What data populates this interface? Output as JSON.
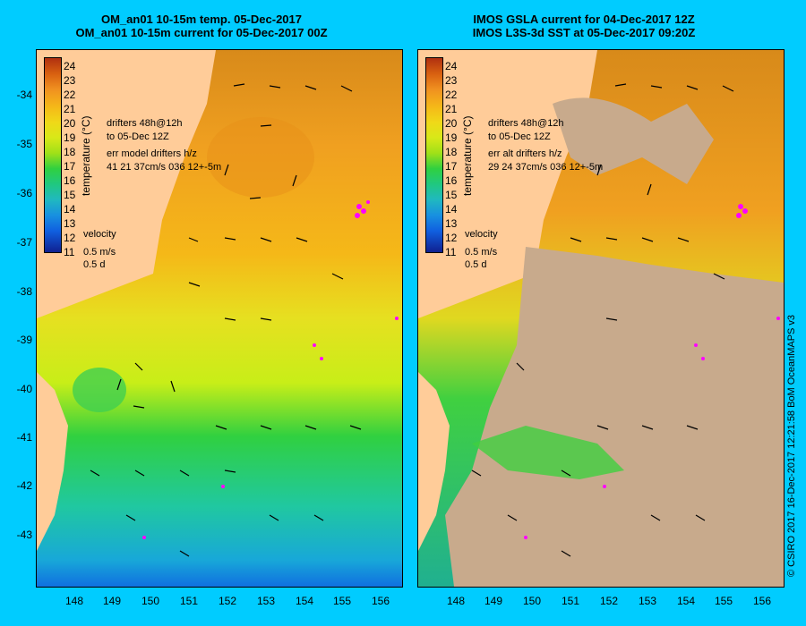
{
  "left_panel": {
    "title_line1": "OM_an01 10-15m temp. 05-Dec-2017",
    "title_line2": "OM_an01 10-15m current for 05-Dec-2017 00Z",
    "note_line1": "drifters 48h@12h",
    "note_line2": "to 05-Dec 12Z",
    "note_line3": "err model drifters h/z",
    "note_line4": "41 21 37cm/s 036 12+-5m"
  },
  "right_panel": {
    "title_line1": "IMOS GSLA current for 04-Dec-2017 12Z",
    "title_line2": "IMOS L3S-3d SST at 05-Dec-2017 09:20Z",
    "note_line1": "drifters 48h@12h",
    "note_line2": "to 05-Dec 12Z",
    "note_line3": "err alt drifters h/z",
    "note_line4": "29 24 37cm/s 036 12+-5m"
  },
  "velocity_legend": {
    "label": "velocity",
    "speed": "0.5 m/s",
    "time": "0.5 d"
  },
  "colorbar": {
    "label": "temperature (°C)",
    "ticks": [
      "24",
      "23",
      "22",
      "21",
      "20",
      "19",
      "18",
      "17",
      "16",
      "15",
      "14",
      "13",
      "12",
      "11"
    ]
  },
  "y_ticks": [
    "-34",
    "-35",
    "-36",
    "-37",
    "-38",
    "-39",
    "-40",
    "-41",
    "-42",
    "-43"
  ],
  "x_ticks": [
    "148",
    "149",
    "150",
    "151",
    "152",
    "153",
    "154",
    "155",
    "156"
  ],
  "credit": "© CSIRO 2017   16-Dec-2017 12:21:58 BoM OceanMAPS v3",
  "colors": {
    "background": "#00ccff",
    "land": "#ffcc99",
    "no_data": "#c8aa8c",
    "drifter": "#ff00ff"
  }
}
